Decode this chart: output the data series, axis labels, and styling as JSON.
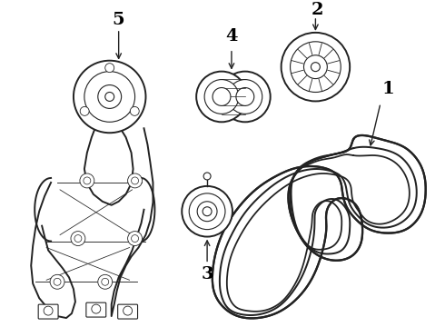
{
  "background_color": "#ffffff",
  "line_color": "#222222",
  "label_color": "#000000",
  "figsize": [
    4.9,
    3.6
  ],
  "dpi": 100,
  "label_fontsize": 14,
  "lw_main": 1.4,
  "lw_thin": 0.8,
  "lw_belt": 1.6
}
